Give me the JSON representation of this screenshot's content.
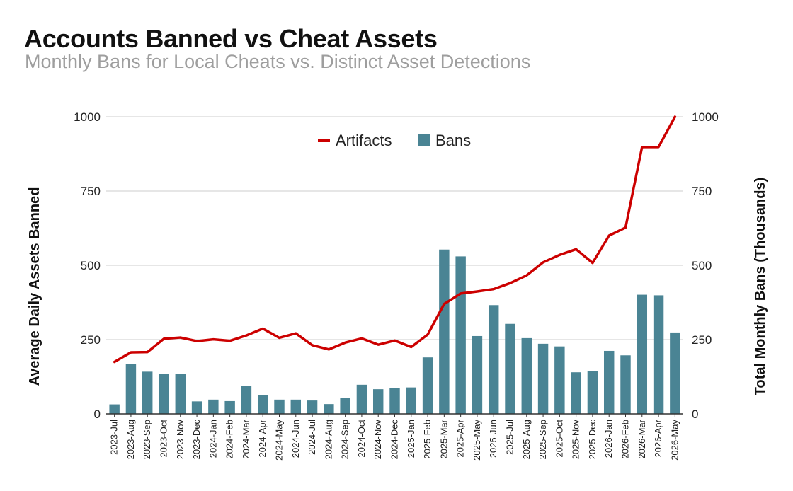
{
  "title": "Accounts Banned vs Cheat Assets",
  "subtitle": "Monthly Bans for Local Cheats vs. Distinct Asset Detections",
  "chart_data": {
    "type": "bar",
    "categories": [
      "2023-Jul",
      "2023-Aug",
      "2023-Sep",
      "2023-Oct",
      "2023-Nov",
      "2023-Dec",
      "2024-Jan",
      "2024-Feb",
      "2024-Mar",
      "2024-Apr",
      "2024-May",
      "2024-Jun",
      "2024-Jul",
      "2024-Aug",
      "2024-Sep",
      "2024-Oct",
      "2024-Nov",
      "2024-Dec",
      "2025-Jan",
      "2025-Feb",
      "2025-Mar",
      "2025-Apr",
      "2025-May",
      "2025-Jun",
      "2025-Jul",
      "2025-Aug",
      "2025-Sep",
      "2025-Oct",
      "2025-Nov",
      "2025-Dec",
      "2026-Jan",
      "2026-Feb",
      "2026-Mar",
      "2026-Apr",
      "2026-May"
    ],
    "series": [
      {
        "name": "Bans",
        "type": "bar",
        "axis": "right",
        "color": "#4a8494",
        "values": [
          32,
          167,
          142,
          134,
          134,
          42,
          48,
          43,
          94,
          62,
          48,
          48,
          45,
          33,
          54,
          98,
          83,
          86,
          89,
          190,
          553,
          530,
          262,
          366,
          303,
          255,
          236,
          227,
          140,
          143,
          212,
          197,
          401,
          399,
          274
        ]
      },
      {
        "name": "Artifacts",
        "type": "line",
        "axis": "left",
        "color": "#cc0000",
        "values": [
          175,
          207,
          208,
          253,
          257,
          245,
          251,
          246,
          264,
          287,
          256,
          271,
          231,
          217,
          240,
          254,
          233,
          247,
          225,
          267,
          370,
          405,
          412,
          420,
          440,
          466,
          510,
          535,
          554,
          508,
          600,
          627,
          898,
          898,
          1000
        ]
      }
    ],
    "ylabel": "Average Daily Assets Banned",
    "y2label": "Total Monthly Bans (Thousands)",
    "ylim": [
      0,
      1000
    ],
    "y2lim": [
      0,
      1000
    ],
    "yticks": [
      0,
      250,
      500,
      750,
      1000
    ],
    "y2ticks": [
      0,
      250,
      500,
      750,
      1000
    ],
    "grid": true,
    "legend_position": "top-center"
  }
}
